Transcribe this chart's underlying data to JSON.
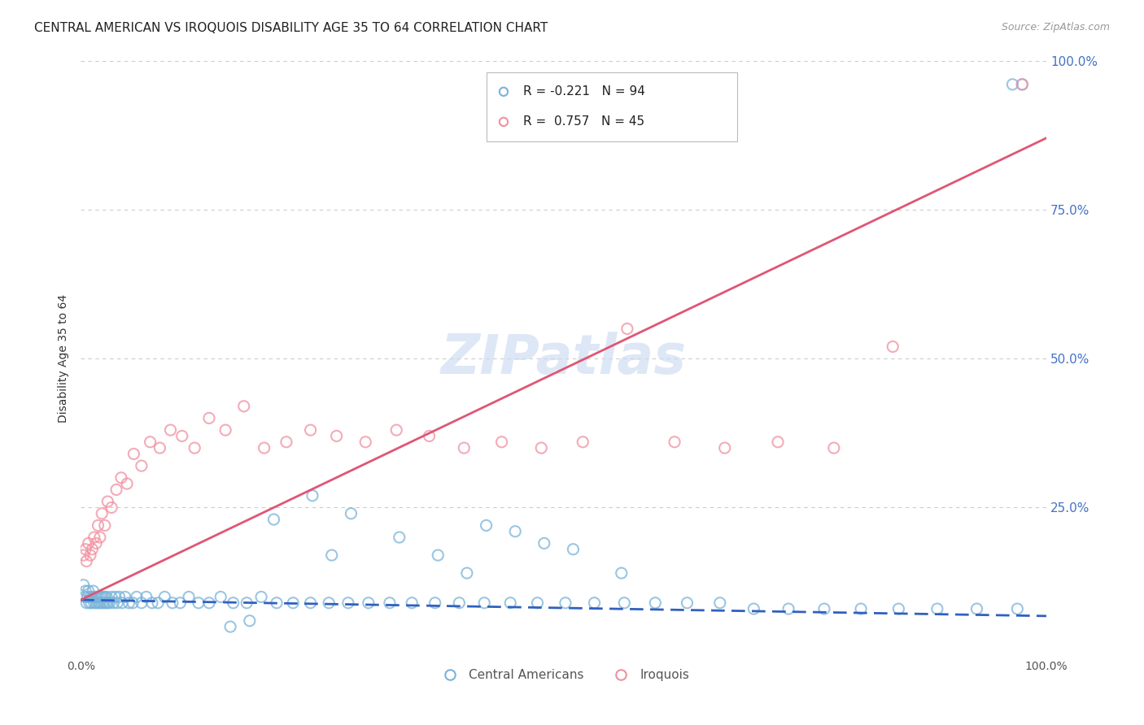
{
  "title": "CENTRAL AMERICAN VS IROQUOIS DISABILITY AGE 35 TO 64 CORRELATION CHART",
  "source": "Source: ZipAtlas.com",
  "ylabel": "Disability Age 35 to 64",
  "xlim": [
    0.0,
    1.0
  ],
  "ylim": [
    0.0,
    1.0
  ],
  "y_tick_positions": [
    0.25,
    0.5,
    0.75,
    1.0
  ],
  "y_tick_labels": [
    "25.0%",
    "50.0%",
    "75.0%",
    "100.0%"
  ],
  "watermark": "ZIPatlas",
  "legend_blue_r": "-0.221",
  "legend_blue_n": "94",
  "legend_pink_r": "0.757",
  "legend_pink_n": "45",
  "blue_color": "#7ab3d9",
  "pink_color": "#f090a0",
  "blue_line_color": "#3060c0",
  "pink_line_color": "#e05575",
  "grid_color": "#cccccc",
  "background_color": "#ffffff",
  "title_fontsize": 11,
  "tick_fontsize": 10,
  "watermark_color": "#c8d8f0",
  "blue_trendline": [
    0.095,
    0.068
  ],
  "pink_trendline": [
    0.095,
    0.87
  ],
  "blue_scatter_x": [
    0.003,
    0.004,
    0.005,
    0.006,
    0.007,
    0.008,
    0.009,
    0.01,
    0.011,
    0.012,
    0.013,
    0.014,
    0.015,
    0.016,
    0.017,
    0.018,
    0.019,
    0.02,
    0.021,
    0.022,
    0.023,
    0.024,
    0.025,
    0.026,
    0.027,
    0.028,
    0.03,
    0.032,
    0.034,
    0.036,
    0.038,
    0.04,
    0.043,
    0.046,
    0.05,
    0.054,
    0.058,
    0.063,
    0.068,
    0.074,
    0.08,
    0.087,
    0.095,
    0.103,
    0.112,
    0.122,
    0.133,
    0.145,
    0.158,
    0.172,
    0.187,
    0.203,
    0.22,
    0.238,
    0.257,
    0.277,
    0.298,
    0.32,
    0.343,
    0.367,
    0.392,
    0.418,
    0.445,
    0.473,
    0.502,
    0.532,
    0.563,
    0.595,
    0.628,
    0.662,
    0.697,
    0.733,
    0.77,
    0.808,
    0.847,
    0.887,
    0.928,
    0.97,
    0.4,
    0.45,
    0.33,
    0.28,
    0.51,
    0.56,
    0.37,
    0.42,
    0.48,
    0.2,
    0.24,
    0.26,
    0.175,
    0.155,
    0.965,
    0.975
  ],
  "blue_scatter_y": [
    0.12,
    0.1,
    0.11,
    0.09,
    0.1,
    0.11,
    0.09,
    0.1,
    0.09,
    0.1,
    0.11,
    0.09,
    0.1,
    0.09,
    0.1,
    0.09,
    0.1,
    0.09,
    0.1,
    0.09,
    0.1,
    0.09,
    0.1,
    0.09,
    0.1,
    0.09,
    0.09,
    0.1,
    0.09,
    0.1,
    0.09,
    0.1,
    0.09,
    0.1,
    0.09,
    0.09,
    0.1,
    0.09,
    0.1,
    0.09,
    0.09,
    0.1,
    0.09,
    0.09,
    0.1,
    0.09,
    0.09,
    0.1,
    0.09,
    0.09,
    0.1,
    0.09,
    0.09,
    0.09,
    0.09,
    0.09,
    0.09,
    0.09,
    0.09,
    0.09,
    0.09,
    0.09,
    0.09,
    0.09,
    0.09,
    0.09,
    0.09,
    0.09,
    0.09,
    0.09,
    0.08,
    0.08,
    0.08,
    0.08,
    0.08,
    0.08,
    0.08,
    0.08,
    0.14,
    0.21,
    0.2,
    0.24,
    0.18,
    0.14,
    0.17,
    0.22,
    0.19,
    0.23,
    0.27,
    0.17,
    0.06,
    0.05,
    0.96,
    0.96
  ],
  "pink_scatter_x": [
    0.003,
    0.005,
    0.006,
    0.008,
    0.01,
    0.012,
    0.014,
    0.016,
    0.018,
    0.02,
    0.022,
    0.025,
    0.028,
    0.032,
    0.037,
    0.042,
    0.048,
    0.055,
    0.063,
    0.072,
    0.082,
    0.093,
    0.105,
    0.118,
    0.133,
    0.15,
    0.169,
    0.19,
    0.213,
    0.238,
    0.265,
    0.295,
    0.327,
    0.361,
    0.397,
    0.436,
    0.477,
    0.52,
    0.566,
    0.615,
    0.667,
    0.722,
    0.78,
    0.841,
    0.975
  ],
  "pink_scatter_y": [
    0.17,
    0.18,
    0.16,
    0.19,
    0.17,
    0.18,
    0.2,
    0.19,
    0.22,
    0.2,
    0.24,
    0.22,
    0.26,
    0.25,
    0.28,
    0.3,
    0.29,
    0.34,
    0.32,
    0.36,
    0.35,
    0.38,
    0.37,
    0.35,
    0.4,
    0.38,
    0.42,
    0.35,
    0.36,
    0.38,
    0.37,
    0.36,
    0.38,
    0.37,
    0.35,
    0.36,
    0.35,
    0.36,
    0.55,
    0.36,
    0.35,
    0.36,
    0.35,
    0.52,
    0.96
  ]
}
